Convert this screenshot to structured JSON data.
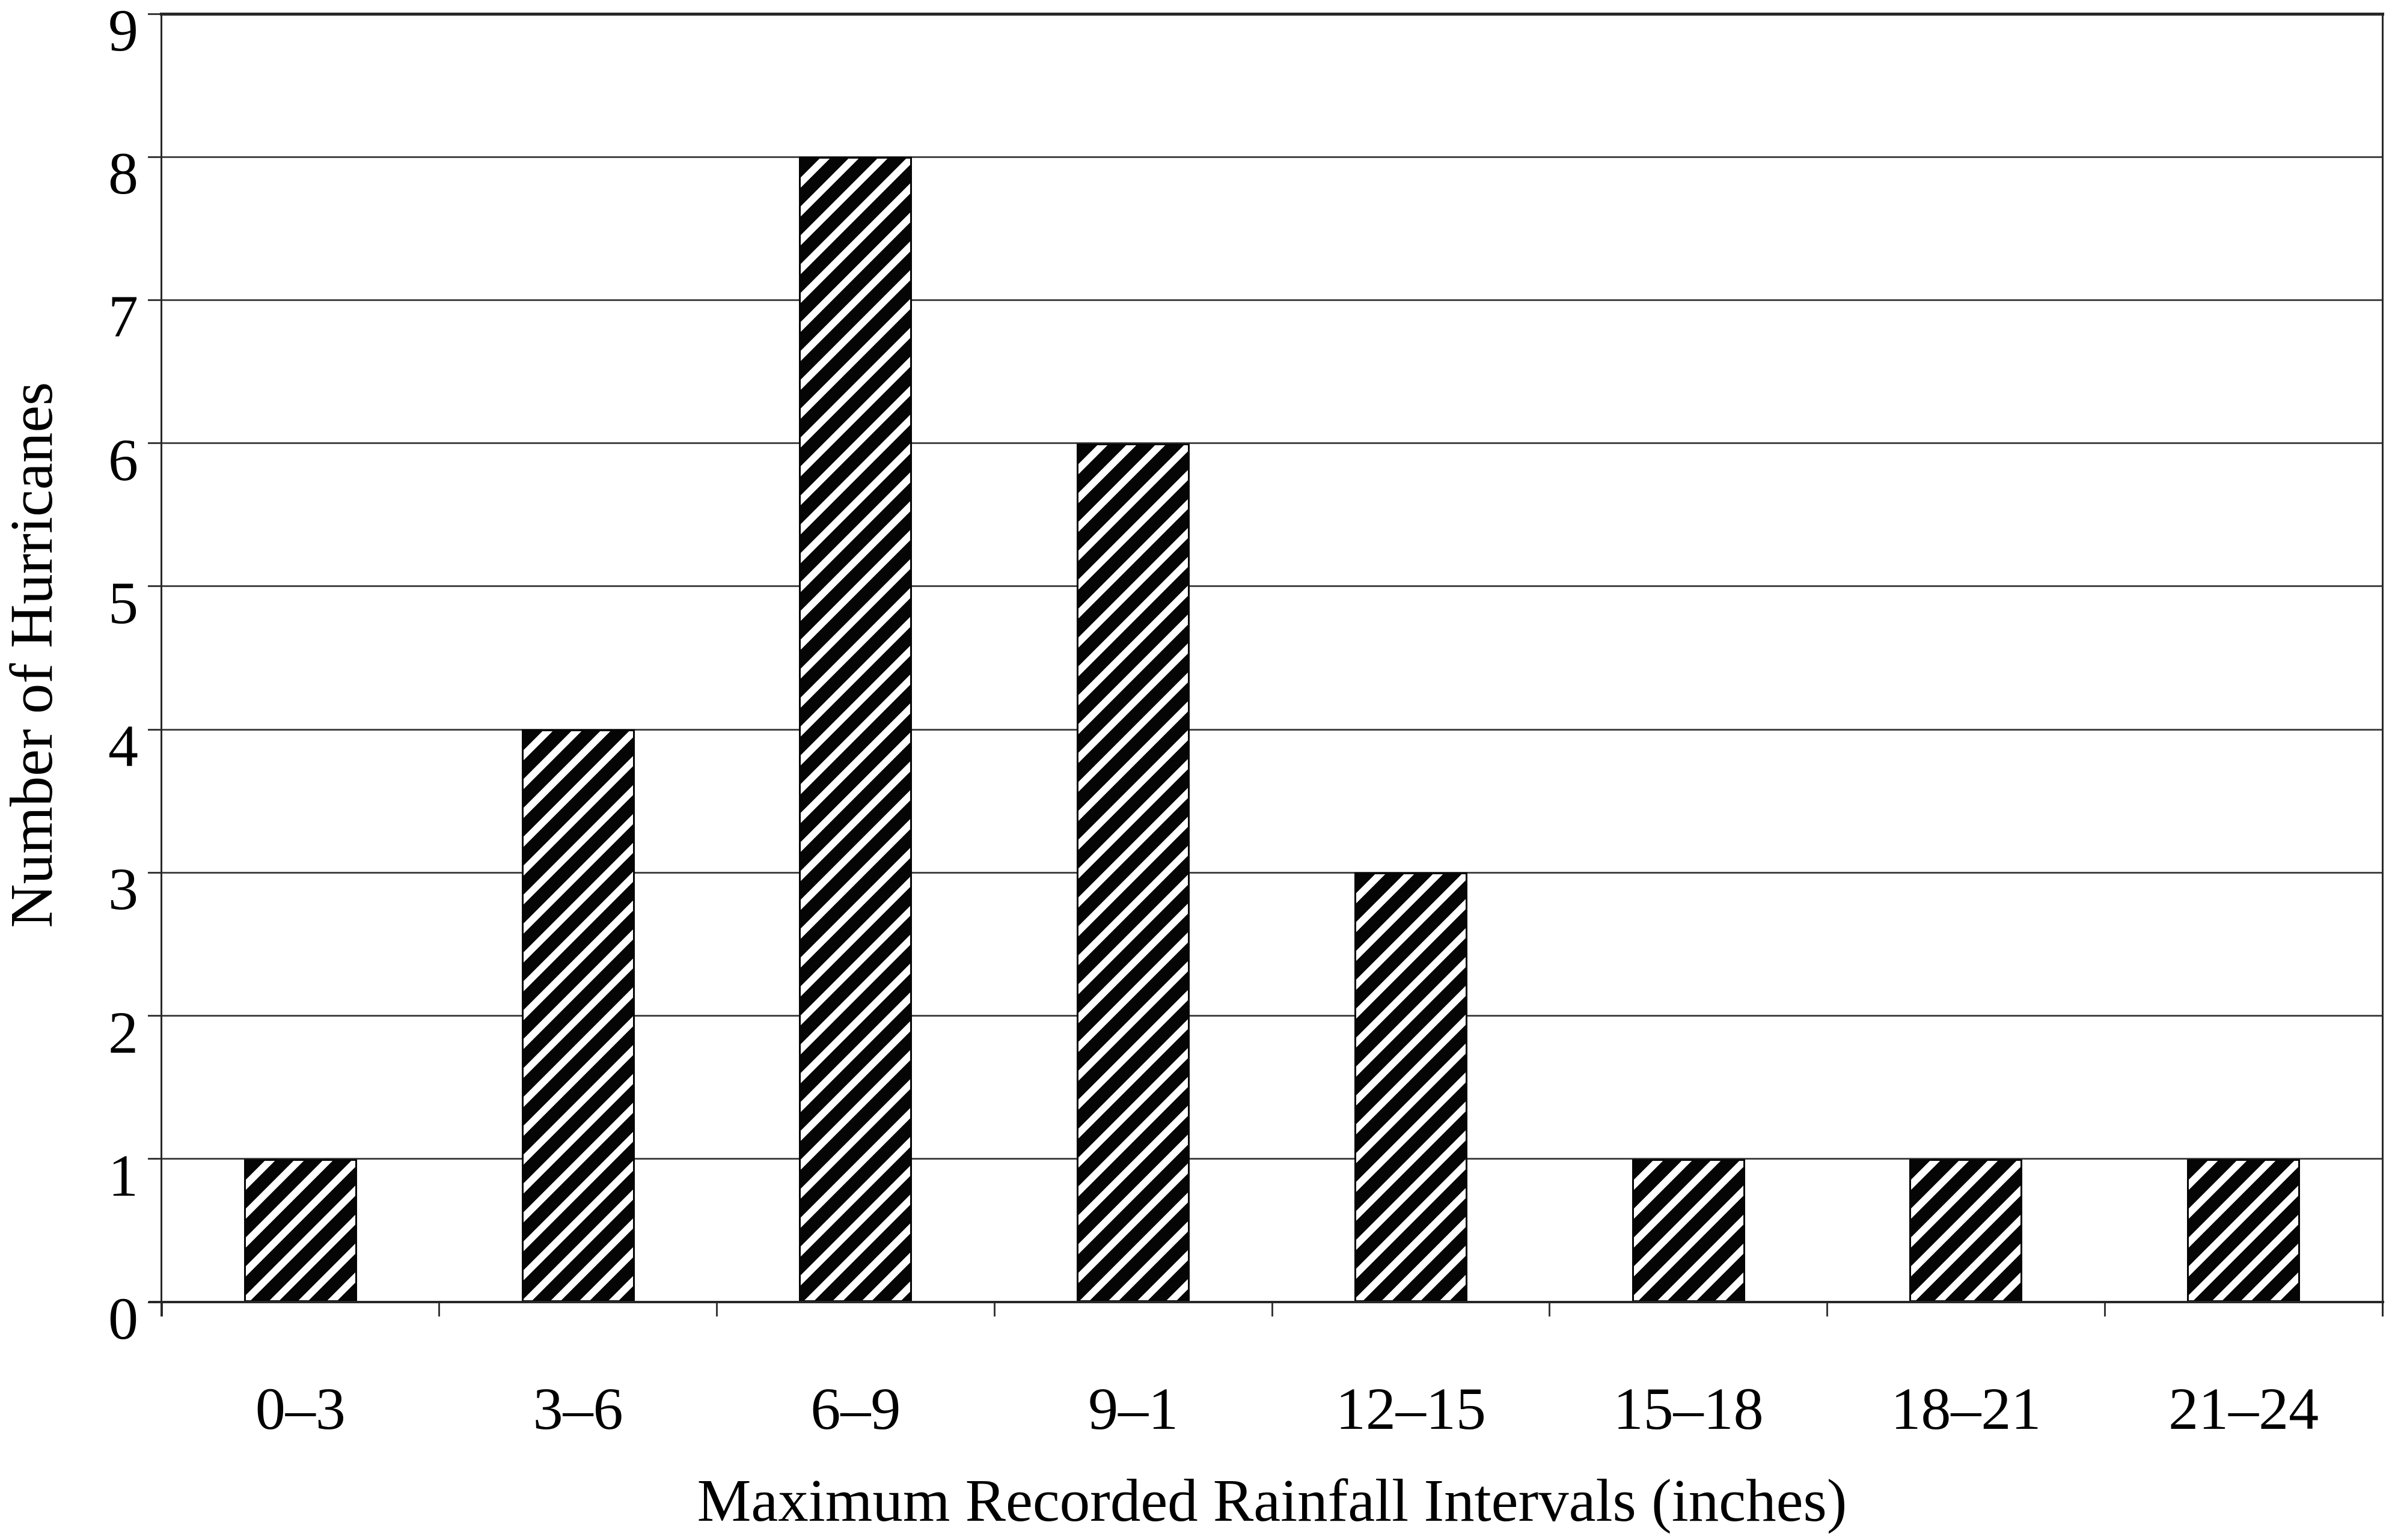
{
  "chart_data": {
    "type": "bar",
    "title": "",
    "categories": [
      "0–3",
      "3–6",
      "6–9",
      "9–1",
      "12–15",
      "15–18",
      "18–21",
      "21–24"
    ],
    "values": [
      1,
      4,
      8,
      6,
      3,
      1,
      1,
      1
    ],
    "xlabel": "Maximum Recorded Rainfall Intervals (inches)",
    "ylabel": "Number of Hurricanes",
    "ylim": [
      0,
      9
    ],
    "yticks": [
      0,
      1,
      2,
      3,
      4,
      5,
      6,
      7,
      8,
      9
    ],
    "grid": "horizontal gridlines at every integer",
    "legend": "none",
    "bar_fill": "black with white diagonal hatch stripes (/)",
    "colors": {
      "background": "#ffffff",
      "bar_black": "#050505",
      "stripe_white": "#ffffff",
      "gridline": "#454545",
      "axis_frame": "#282828",
      "text": "#000000"
    }
  }
}
